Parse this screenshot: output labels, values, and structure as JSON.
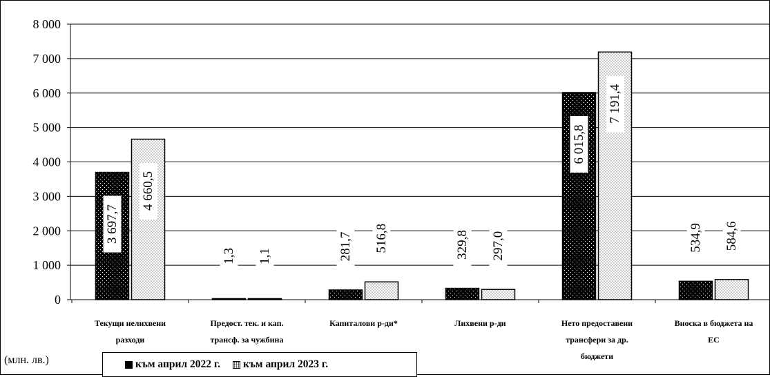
{
  "unit_label": "(млн. лв.)",
  "colors": {
    "series1": "#000000",
    "series2": "#ffffff",
    "axis": "#000000",
    "grid": "#000000"
  },
  "chart_data": {
    "type": "bar",
    "title": "",
    "xlabel": "",
    "ylabel": "(млн. лв.)",
    "ylim": [
      0,
      8000
    ],
    "yticks": [
      0,
      1000,
      2000,
      3000,
      4000,
      5000,
      6000,
      7000,
      8000
    ],
    "ytick_labels": [
      "0",
      "1 000",
      "2 000",
      "3 000",
      "4 000",
      "5 000",
      "6 000",
      "7 000",
      "8 000"
    ],
    "grid": true,
    "legend_position": "bottom",
    "categories": [
      [
        "Текущи нелихвени",
        "разходи"
      ],
      [
        "Предост. тек. и кап.",
        "трансф. за чужбина"
      ],
      [
        "Капиталови р-ди*"
      ],
      [
        "Лихвени р-ди"
      ],
      [
        "Нето предоставени",
        "трансфери за др.",
        "бюджети"
      ],
      [
        "Вноска в бюджета на",
        "ЕС"
      ]
    ],
    "series": [
      {
        "name": "към април 2022 г.",
        "values": [
          3697.7,
          1.3,
          281.7,
          329.8,
          6015.8,
          534.9
        ],
        "labels": [
          "3 697,7",
          "1,3",
          "281,7",
          "329,8",
          "6 015,8",
          "534,9"
        ]
      },
      {
        "name": "към април  2023 г.",
        "values": [
          4660.5,
          1.1,
          516.8,
          297.0,
          7191.4,
          584.6
        ],
        "labels": [
          "4 660,5",
          "1,1",
          "516,8",
          "297,0",
          "7 191,4",
          "584,6"
        ]
      }
    ]
  }
}
